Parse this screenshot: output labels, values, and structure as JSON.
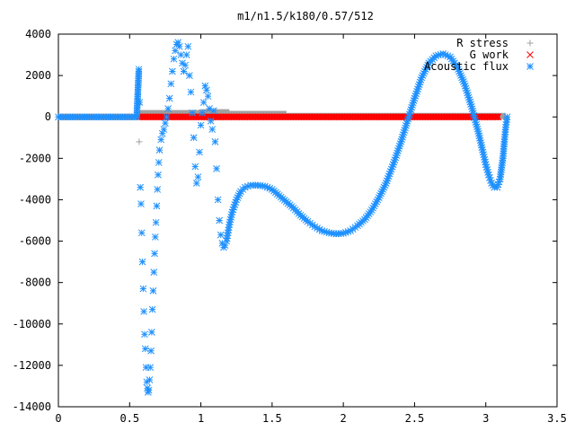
{
  "chart_data": {
    "type": "scatter",
    "title": "m1/n1.5/k180/0.57/512",
    "xlabel": "",
    "ylabel": "",
    "xlim": [
      0,
      3.5
    ],
    "ylim": [
      -14000,
      4000
    ],
    "xticks": [
      0,
      0.5,
      1,
      1.5,
      2,
      2.5,
      3,
      3.5
    ],
    "xtick_labels": [
      "0",
      "0.5",
      "1",
      "1.5",
      "2",
      "2.5",
      "3",
      "3.5"
    ],
    "yticks": [
      -14000,
      -12000,
      -10000,
      -8000,
      -6000,
      -4000,
      -2000,
      0,
      2000,
      4000
    ],
    "ytick_labels": [
      "-14000",
      "-12000",
      "-10000",
      "-8000",
      "-6000",
      "-4000",
      "-2000",
      "0",
      "2000",
      "4000"
    ],
    "grid": false,
    "legend_position": "top-right",
    "series": [
      {
        "name": "R stress",
        "marker": "plus",
        "color": "#a0a0a0",
        "segments": [
          {
            "x_from": 0.0,
            "x_to": 0.57,
            "y": 0
          },
          {
            "x_from": 0.57,
            "x_to": 1.0,
            "y": 180
          },
          {
            "x_from": 1.0,
            "x_to": 1.2,
            "y": 220
          },
          {
            "x_from": 1.2,
            "x_to": 1.6,
            "y": 140
          },
          {
            "x_from": 1.6,
            "x_to": 3.14,
            "y": 40
          }
        ],
        "points": [
          [
            0.567,
            -1200
          ],
          [
            0.567,
            600
          ],
          [
            1.05,
            250
          ],
          [
            1.1,
            280
          ],
          [
            1.15,
            230
          ]
        ]
      },
      {
        "name": "G work",
        "marker": "cross",
        "color": "#ff0000",
        "segments": [
          {
            "x_from": 0.57,
            "x_to": 3.1,
            "y": 0
          }
        ],
        "points": []
      },
      {
        "name": "Acoustic flux",
        "marker": "star",
        "color": "#1e90ff",
        "points": [
          [
            0.0,
            0
          ],
          [
            0.05,
            0
          ],
          [
            0.1,
            0
          ],
          [
            0.15,
            0
          ],
          [
            0.2,
            0
          ],
          [
            0.25,
            0
          ],
          [
            0.3,
            0
          ],
          [
            0.35,
            0
          ],
          [
            0.4,
            0
          ],
          [
            0.45,
            0
          ],
          [
            0.5,
            0
          ],
          [
            0.55,
            0
          ],
          [
            0.565,
            2300
          ],
          [
            0.57,
            700
          ],
          [
            0.575,
            -3400
          ],
          [
            0.58,
            -4200
          ],
          [
            0.585,
            -5600
          ],
          [
            0.59,
            -7000
          ],
          [
            0.595,
            -8300
          ],
          [
            0.6,
            -9400
          ],
          [
            0.605,
            -10500
          ],
          [
            0.61,
            -11200
          ],
          [
            0.615,
            -12100
          ],
          [
            0.62,
            -12800
          ],
          [
            0.625,
            -13100
          ],
          [
            0.63,
            -13300
          ],
          [
            0.635,
            -13200
          ],
          [
            0.64,
            -12700
          ],
          [
            0.645,
            -12100
          ],
          [
            0.65,
            -11300
          ],
          [
            0.655,
            -10400
          ],
          [
            0.66,
            -9300
          ],
          [
            0.665,
            -8400
          ],
          [
            0.67,
            -7500
          ],
          [
            0.675,
            -6600
          ],
          [
            0.68,
            -5800
          ],
          [
            0.685,
            -5100
          ],
          [
            0.69,
            -4300
          ],
          [
            0.695,
            -3500
          ],
          [
            0.7,
            -2800
          ],
          [
            0.705,
            -2200
          ],
          [
            0.71,
            -1600
          ],
          [
            0.72,
            -1100
          ],
          [
            0.73,
            -800
          ],
          [
            0.74,
            -600
          ],
          [
            0.75,
            -300
          ],
          [
            0.76,
            0
          ],
          [
            0.77,
            400
          ],
          [
            0.78,
            900
          ],
          [
            0.79,
            1600
          ],
          [
            0.8,
            2200
          ],
          [
            0.81,
            2800
          ],
          [
            0.82,
            3200
          ],
          [
            0.83,
            3500
          ],
          [
            0.84,
            3600
          ],
          [
            0.85,
            3400
          ],
          [
            0.86,
            3000
          ],
          [
            0.87,
            2600
          ],
          [
            0.88,
            2200
          ],
          [
            0.89,
            2500
          ],
          [
            0.9,
            3000
          ],
          [
            0.91,
            3400
          ],
          [
            0.92,
            2000
          ],
          [
            0.93,
            1200
          ],
          [
            0.94,
            200
          ],
          [
            0.95,
            -1000
          ],
          [
            0.96,
            -2400
          ],
          [
            0.97,
            -3200
          ],
          [
            0.98,
            -2900
          ],
          [
            0.99,
            -1700
          ],
          [
            1.0,
            -400
          ],
          [
            1.01,
            200
          ],
          [
            1.02,
            700
          ],
          [
            1.03,
            1500
          ],
          [
            1.04,
            1300
          ],
          [
            1.05,
            1000
          ],
          [
            1.06,
            400
          ],
          [
            1.07,
            -200
          ],
          [
            1.08,
            -600
          ],
          [
            1.09,
            300
          ],
          [
            1.1,
            -1200
          ],
          [
            1.11,
            -2500
          ],
          [
            1.12,
            -4000
          ],
          [
            1.13,
            -5000
          ],
          [
            1.14,
            -5700
          ],
          [
            1.15,
            -6100
          ],
          [
            1.16,
            -6300
          ],
          [
            1.17,
            -6200
          ],
          [
            1.18,
            -6000
          ],
          [
            1.19,
            -5600
          ],
          [
            1.2,
            -5200
          ],
          [
            1.22,
            -4600
          ],
          [
            1.25,
            -4000
          ],
          [
            1.28,
            -3600
          ],
          [
            1.31,
            -3400
          ],
          [
            1.35,
            -3300
          ],
          [
            1.4,
            -3300
          ],
          [
            1.45,
            -3350
          ],
          [
            1.5,
            -3500
          ],
          [
            1.55,
            -3800
          ],
          [
            1.6,
            -4100
          ],
          [
            1.65,
            -4400
          ],
          [
            1.7,
            -4750
          ],
          [
            1.75,
            -5050
          ],
          [
            1.8,
            -5300
          ],
          [
            1.85,
            -5500
          ],
          [
            1.9,
            -5600
          ],
          [
            1.95,
            -5650
          ],
          [
            2.0,
            -5620
          ],
          [
            2.05,
            -5500
          ],
          [
            2.1,
            -5250
          ],
          [
            2.15,
            -4950
          ],
          [
            2.2,
            -4500
          ],
          [
            2.25,
            -3900
          ],
          [
            2.3,
            -3200
          ],
          [
            2.35,
            -2300
          ],
          [
            2.4,
            -1300
          ],
          [
            2.45,
            -200
          ],
          [
            2.5,
            900
          ],
          [
            2.55,
            1900
          ],
          [
            2.6,
            2600
          ],
          [
            2.65,
            2950
          ],
          [
            2.7,
            3050
          ],
          [
            2.75,
            2900
          ],
          [
            2.8,
            2400
          ],
          [
            2.85,
            1600
          ],
          [
            2.9,
            500
          ],
          [
            2.95,
            -800
          ],
          [
            2.98,
            -1700
          ],
          [
            3.0,
            -2300
          ],
          [
            3.02,
            -2800
          ],
          [
            3.04,
            -3200
          ],
          [
            3.06,
            -3400
          ],
          [
            3.08,
            -3400
          ],
          [
            3.1,
            -3000
          ],
          [
            3.12,
            -2000
          ],
          [
            3.13,
            -1200
          ],
          [
            3.14,
            -500
          ],
          [
            3.15,
            0
          ]
        ]
      }
    ]
  }
}
